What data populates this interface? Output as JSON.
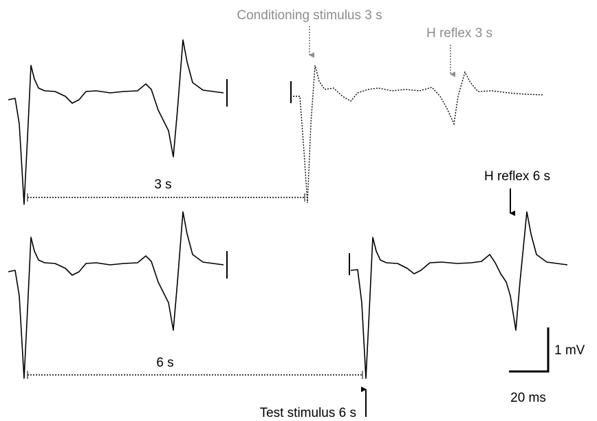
{
  "labels": {
    "conditioning": "Conditioning stimulus 3 s",
    "h_reflex_3": "H reflex 3 s",
    "interval_3": "3 s",
    "h_reflex_6": "H reflex 6 s",
    "interval_6": "6 s",
    "test": "Test stimulus 6 s",
    "scale_v": "1 mV",
    "scale_t": "20 ms"
  }
}
